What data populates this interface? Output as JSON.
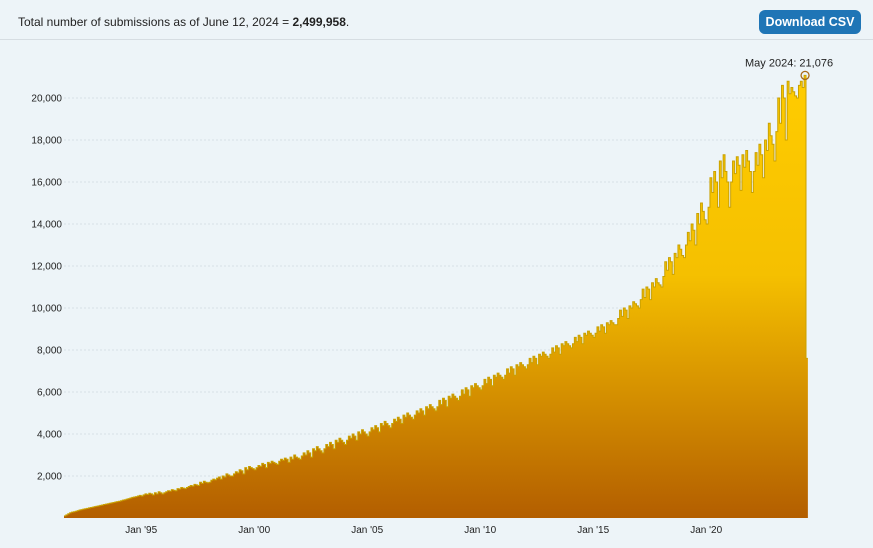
{
  "header": {
    "total_prefix": "Total number of submissions as of June 12, 2024 = ",
    "total_value": "2,499,958",
    "total_suffix": ".",
    "download_label": "Download CSV"
  },
  "colors": {
    "fill_top": "#ffcc00",
    "fill_bottom": "#b35e00",
    "outline": "#c9a100",
    "grid": "#d7e0e6"
  },
  "chart_data": {
    "type": "area",
    "title": "",
    "xlabel": "",
    "ylabel": "",
    "x_start": "1991-08",
    "x_end": "2024-06",
    "ylim": [
      0,
      22000
    ],
    "yticks": [
      "2,000",
      "4,000",
      "6,000",
      "8,000",
      "10,000",
      "12,000",
      "14,000",
      "16,000",
      "18,000",
      "20,000"
    ],
    "ytick_values": [
      2000,
      4000,
      6000,
      8000,
      10000,
      12000,
      14000,
      16000,
      18000,
      20000
    ],
    "xticks": [
      "Jan '95",
      "Jan '00",
      "Jan '05",
      "Jan '10",
      "Jan '15",
      "Jan '20"
    ],
    "xtick_dates": [
      "1995-01",
      "2000-01",
      "2005-01",
      "2010-01",
      "2015-01",
      "2020-01"
    ],
    "grid": true,
    "annotation": {
      "label": "May 2024: 21,076",
      "date": "2024-05",
      "value": 21076
    },
    "series": [
      {
        "yearly": [
          {
            "year": 1991,
            "months": [
              100,
              150,
              200,
              250,
              280
            ]
          },
          {
            "year": 1992,
            "months": [
              300,
              320,
              350,
              380,
              400,
              420,
              440,
              460,
              480,
              500,
              520,
              540
            ]
          },
          {
            "year": 1993,
            "months": [
              560,
              580,
              600,
              620,
              640,
              660,
              680,
              700,
              720,
              740,
              760,
              780
            ]
          },
          {
            "year": 1994,
            "months": [
              800,
              820,
              850,
              870,
              900,
              920,
              950,
              980,
              1000,
              1020,
              1050,
              1080
            ]
          },
          {
            "year": 1995,
            "months": [
              1050,
              1100,
              1150,
              1120,
              1180,
              1150,
              1100,
              1200,
              1150,
              1250,
              1200,
              1150
            ]
          },
          {
            "year": 1996,
            "months": [
              1200,
              1250,
              1300,
              1280,
              1350,
              1320,
              1300,
              1400,
              1380,
              1450,
              1420,
              1400
            ]
          },
          {
            "year": 1997,
            "months": [
              1450,
              1500,
              1550,
              1520,
              1600,
              1580,
              1550,
              1700,
              1650,
              1750,
              1700,
              1680
            ]
          },
          {
            "year": 1998,
            "months": [
              1700,
              1800,
              1850,
              1820,
              1900,
              1950,
              1850,
              2000,
              1950,
              2100,
              2050,
              2000
            ]
          },
          {
            "year": 1999,
            "months": [
              2000,
              2100,
              2200,
              2150,
              2300,
              2250,
              2100,
              2400,
              2300,
              2450,
              2400,
              2350
            ]
          },
          {
            "year": 2000,
            "months": [
              2300,
              2400,
              2500,
              2450,
              2600,
              2550,
              2400,
              2650,
              2600,
              2700,
              2650,
              2600
            ]
          },
          {
            "year": 2001,
            "months": [
              2550,
              2700,
              2800,
              2750,
              2850,
              2800,
              2650,
              2900,
              2800,
              3000,
              2900,
              2850
            ]
          },
          {
            "year": 2002,
            "months": [
              2800,
              2950,
              3100,
              3000,
              3200,
              3100,
              2900,
              3300,
              3200,
              3400,
              3300,
              3200
            ]
          },
          {
            "year": 2003,
            "months": [
              3100,
              3300,
              3500,
              3400,
              3600,
              3500,
              3300,
              3700,
              3600,
              3800,
              3700,
              3600
            ]
          },
          {
            "year": 2004,
            "months": [
              3500,
              3700,
              3900,
              3800,
              4000,
              3900,
              3700,
              4100,
              4000,
              4200,
              4100,
              4000
            ]
          },
          {
            "year": 2005,
            "months": [
              3900,
              4100,
              4300,
              4200,
              4400,
              4300,
              4100,
              4500,
              4400,
              4600,
              4500,
              4400
            ]
          },
          {
            "year": 2006,
            "months": [
              4300,
              4500,
              4700,
              4600,
              4800,
              4700,
              4500,
              4900,
              4800,
              5000,
              4900,
              4800
            ]
          },
          {
            "year": 2007,
            "months": [
              4700,
              4900,
              5100,
              5000,
              5200,
              5100,
              4900,
              5300,
              5200,
              5400,
              5300,
              5200
            ]
          },
          {
            "year": 2008,
            "months": [
              5100,
              5300,
              5600,
              5400,
              5700,
              5600,
              5300,
              5800,
              5700,
              5900,
              5800,
              5700
            ]
          },
          {
            "year": 2009,
            "months": [
              5600,
              5800,
              6100,
              5900,
              6200,
              6100,
              5800,
              6300,
              6200,
              6400,
              6300,
              6200
            ]
          },
          {
            "year": 2010,
            "months": [
              6100,
              6300,
              6600,
              6400,
              6700,
              6600,
              6300,
              6800,
              6700,
              6900,
              6800,
              6700
            ]
          },
          {
            "year": 2011,
            "months": [
              6600,
              6800,
              7100,
              6900,
              7200,
              7100,
              6800,
              7300,
              7200,
              7400,
              7300,
              7200
            ]
          },
          {
            "year": 2012,
            "months": [
              7100,
              7300,
              7600,
              7400,
              7700,
              7600,
              7300,
              7800,
              7700,
              7900,
              7800,
              7700
            ]
          },
          {
            "year": 2013,
            "months": [
              7600,
              7800,
              8100,
              7900,
              8200,
              8100,
              7800,
              8300,
              8200,
              8400,
              8300,
              8200
            ]
          },
          {
            "year": 2014,
            "months": [
              8100,
              8300,
              8600,
              8400,
              8700,
              8600,
              8300,
              8800,
              8700,
              8900,
              8800,
              8700
            ]
          },
          {
            "year": 2015,
            "months": [
              8600,
              8800,
              9100,
              8900,
              9200,
              9100,
              8800,
              9300,
              9200,
              9400,
              9300,
              9200
            ]
          },
          {
            "year": 2016,
            "months": [
              9200,
              9500,
              9900,
              9600,
              10000,
              9900,
              9500,
              10100,
              10000,
              10300,
              10200,
              10100
            ]
          },
          {
            "year": 2017,
            "months": [
              10000,
              10400,
              10900,
              10500,
              11000,
              10900,
              10400,
              11200,
              11000,
              11400,
              11200,
              11100
            ]
          },
          {
            "year": 2018,
            "months": [
              11000,
              11500,
              12200,
              11800,
              12400,
              12200,
              11600,
              12600,
              12400,
              13000,
              12800,
              12500
            ]
          },
          {
            "year": 2019,
            "months": [
              12400,
              13000,
              13600,
              13200,
              14000,
              13700,
              13000,
              14500,
              14000,
              15000,
              14600,
              14200
            ]
          },
          {
            "year": 2020,
            "months": [
              14000,
              14800,
              16200,
              15500,
              16500,
              16000,
              14800,
              17000,
              16200,
              17300,
              16500,
              16000
            ]
          },
          {
            "year": 2021,
            "months": [
              14800,
              16000,
              17000,
              16400,
              17200,
              16800,
              15600,
              17300,
              16700,
              17500,
              17000,
              16500
            ]
          },
          {
            "year": 2022,
            "months": [
              15500,
              16500,
              17400,
              16800,
              17800,
              17300,
              16200,
              18000,
              17500,
              18800,
              18200,
              17800
            ]
          },
          {
            "year": 2023,
            "months": [
              17000,
              18400,
              20000,
              18800,
              20600,
              20000,
              18000,
              20800,
              20200,
              20500,
              20300,
              20100
            ]
          },
          {
            "year": 2024,
            "months": [
              20000,
              20600,
              20800,
              20500,
              21076,
              7600
            ]
          }
        ]
      }
    ]
  }
}
